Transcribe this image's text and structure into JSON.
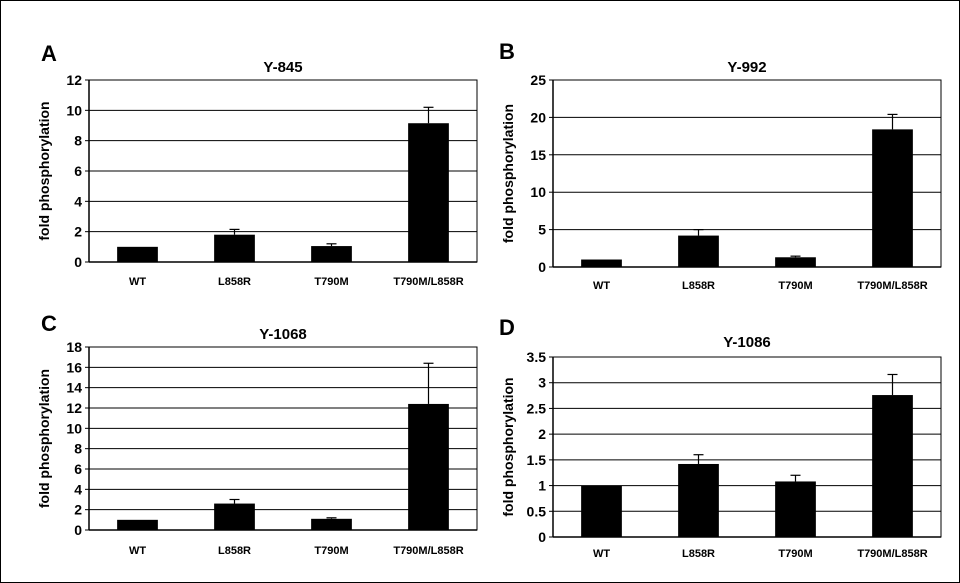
{
  "charts": [
    {
      "panel_letter": "A",
      "chart_data": {
        "type": "bar",
        "title": "Y-845",
        "ylabel": "fold phosphorylation",
        "xlabel": "",
        "categories": [
          "WT",
          "L858R",
          "T790M",
          "T790M/L858R"
        ],
        "values": [
          1.0,
          1.8,
          1.05,
          9.15
        ],
        "error": [
          0,
          0.35,
          0.15,
          1.05
        ],
        "ylim": [
          0,
          12
        ],
        "yticks": [
          "0",
          "2",
          "4",
          "6",
          "8",
          "10",
          "12"
        ],
        "ytick_values": [
          0,
          2,
          4,
          6,
          8,
          10,
          12
        ],
        "grid": true,
        "bar_color": "#000000"
      }
    },
    {
      "panel_letter": "B",
      "chart_data": {
        "type": "bar",
        "title": "Y-992",
        "ylabel": "fold phosphorylation",
        "xlabel": "",
        "categories": [
          "WT",
          "L858R",
          "T790M",
          "T790M/L858R"
        ],
        "values": [
          1.0,
          4.2,
          1.3,
          18.4
        ],
        "error": [
          0,
          0.8,
          0.15,
          2.0
        ],
        "ylim": [
          0,
          25
        ],
        "yticks": [
          "0",
          "5",
          "10",
          "15",
          "20",
          "25"
        ],
        "ytick_values": [
          0,
          5,
          10,
          15,
          20,
          25
        ],
        "grid": true,
        "bar_color": "#000000"
      }
    },
    {
      "panel_letter": "C",
      "chart_data": {
        "type": "bar",
        "title": "Y-1068",
        "ylabel": "fold phosphorylation",
        "xlabel": "",
        "categories": [
          "WT",
          "L858R",
          "T790M",
          "T790M/L858R"
        ],
        "values": [
          1.0,
          2.6,
          1.1,
          12.4
        ],
        "error": [
          0,
          0.4,
          0.1,
          4.0
        ],
        "ylim": [
          0,
          18
        ],
        "yticks": [
          "0",
          "2",
          "4",
          "6",
          "8",
          "10",
          "12",
          "14",
          "16",
          "18"
        ],
        "ytick_values": [
          0,
          2,
          4,
          6,
          8,
          10,
          12,
          14,
          16,
          18
        ],
        "grid": true,
        "bar_color": "#000000"
      }
    },
    {
      "panel_letter": "D",
      "chart_data": {
        "type": "bar",
        "title": "Y-1086",
        "ylabel": "fold phosphorylation",
        "xlabel": "",
        "categories": [
          "WT",
          "L858R",
          "T790M",
          "T790M/L858R"
        ],
        "values": [
          1.0,
          1.42,
          1.08,
          2.76
        ],
        "error": [
          0,
          0.18,
          0.12,
          0.4
        ],
        "ylim": [
          0,
          3.5
        ],
        "yticks": [
          "0",
          "0.5",
          "1",
          "1.5",
          "2",
          "2.5",
          "3",
          "3.5"
        ],
        "ytick_values": [
          0,
          0.5,
          1,
          1.5,
          2,
          2.5,
          3,
          3.5
        ],
        "grid": true,
        "bar_color": "#000000"
      }
    }
  ]
}
